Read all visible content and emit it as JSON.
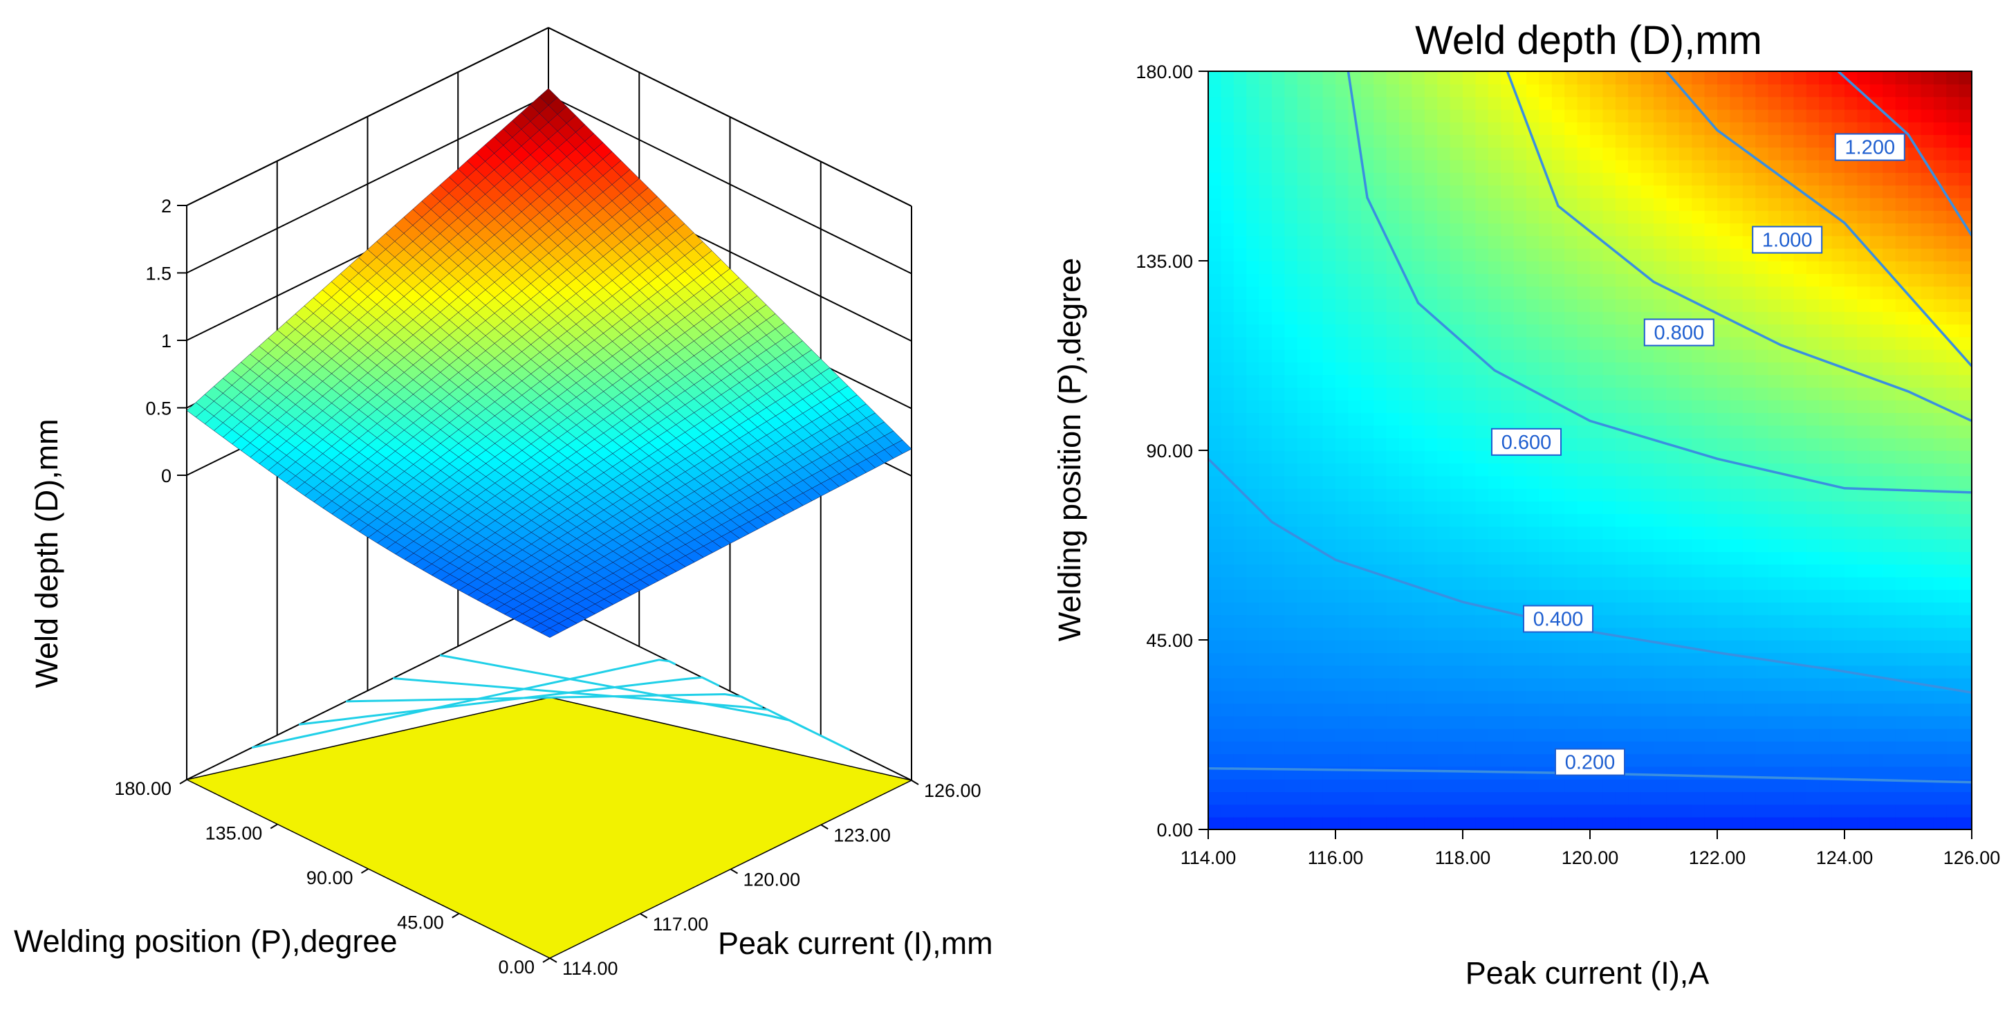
{
  "chart_data": [
    {
      "type": "surface",
      "zlabel": "Weld depth (D),mm",
      "xlabel": "Peak current (I),mm",
      "ylabel": "Welding position (P),degree",
      "x_ticks": [
        "114.00",
        "117.00",
        "120.00",
        "123.00",
        "126.00"
      ],
      "y_ticks": [
        "0.00",
        "45.00",
        "90.00",
        "135.00",
        "180.00"
      ],
      "z_ticks": [
        "0",
        "0.5",
        "1",
        "1.5",
        "2"
      ],
      "xlim": [
        114,
        126
      ],
      "ylim": [
        0,
        180
      ],
      "zlim": [
        0,
        2
      ],
      "corners": [
        {
          "I": 114,
          "P": 0,
          "D": 0.12
        },
        {
          "I": 126,
          "P": 0,
          "D": 0.2
        },
        {
          "I": 114,
          "P": 180,
          "D": 0.48
        },
        {
          "I": 126,
          "P": 180,
          "D": 1.55
        }
      ],
      "colormap": "jet",
      "base_color": "#f2f200"
    },
    {
      "type": "contour",
      "title": "Weld depth (D),mm",
      "xlabel": "Peak current (I),A",
      "ylabel": "Welding position (P),degree",
      "x_ticks": [
        "114.00",
        "116.00",
        "118.00",
        "120.00",
        "122.00",
        "124.00",
        "126.00"
      ],
      "y_ticks": [
        "0.00",
        "45.00",
        "90.00",
        "135.00",
        "180.00"
      ],
      "xlim": [
        114,
        126
      ],
      "ylim": [
        0,
        180
      ],
      "grid": false,
      "colormap": "jet",
      "contours": [
        {
          "level": 0.2,
          "label": "0.200",
          "points": [
            [
              114,
              14.5
            ],
            [
              118,
              13.8
            ],
            [
              120,
              13.3
            ],
            [
              126,
              11.2
            ]
          ]
        },
        {
          "level": 0.4,
          "label": "0.400",
          "points": [
            [
              114,
              88
            ],
            [
              115,
              73
            ],
            [
              116,
              64
            ],
            [
              118,
              54
            ],
            [
              120,
              47
            ],
            [
              122,
              42
            ],
            [
              124,
              37.5
            ],
            [
              126,
              32.5
            ]
          ]
        },
        {
          "level": 0.6,
          "label": "0.600",
          "points": [
            [
              116.2,
              180
            ],
            [
              116.5,
              150
            ],
            [
              117.3,
              125
            ],
            [
              118.5,
              109
            ],
            [
              120,
              97
            ],
            [
              122,
              88
            ],
            [
              124,
              81
            ],
            [
              126,
              80
            ]
          ]
        },
        {
          "level": 0.8,
          "label": "0.800",
          "points": [
            [
              118.7,
              180
            ],
            [
              119.5,
              148
            ],
            [
              121,
              130
            ],
            [
              123,
              115
            ],
            [
              125,
              104
            ],
            [
              126,
              97
            ]
          ]
        },
        {
          "level": 1.0,
          "label": "1.000",
          "points": [
            [
              121.2,
              180
            ],
            [
              122,
              166
            ],
            [
              124,
              144
            ],
            [
              126,
              110
            ]
          ]
        },
        {
          "level": 1.2,
          "label": "1.200",
          "points": [
            [
              123.9,
              180
            ],
            [
              125,
              165
            ],
            [
              126,
              141
            ]
          ]
        }
      ],
      "label_positions": [
        {
          "label": "0.200",
          "I": 120,
          "P": 16
        },
        {
          "label": "0.400",
          "I": 119.5,
          "P": 50
        },
        {
          "label": "0.600",
          "I": 119,
          "P": 92
        },
        {
          "label": "0.800",
          "I": 121.4,
          "P": 118
        },
        {
          "label": "1.000",
          "I": 123.1,
          "P": 140
        },
        {
          "label": "1.200",
          "I": 124.4,
          "P": 162
        }
      ]
    }
  ]
}
